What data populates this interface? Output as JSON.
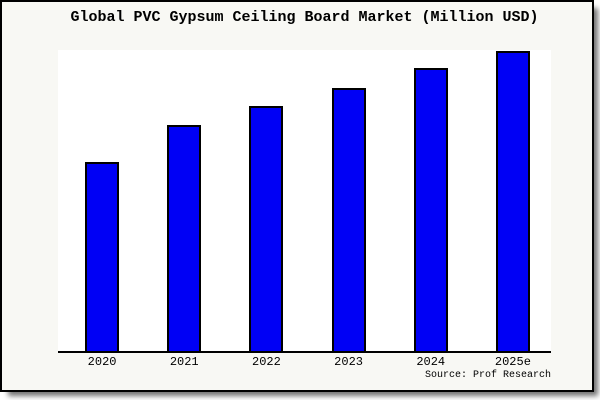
{
  "page": {
    "background": "#ffffff"
  },
  "figure": {
    "background": "#f8f8f4",
    "border_color": "#000000",
    "shadow_color": "#8c8c8c"
  },
  "chart_data": {
    "type": "bar",
    "title": "Global PVC Gypsum Ceiling Board Market (Million USD)",
    "categories": [
      "2020",
      "2021",
      "2022",
      "2023",
      "2024",
      "2025e"
    ],
    "values": [
      63,
      75.3,
      81.5,
      87.7,
      94.3,
      100
    ],
    "value_basis": "relative index estimated from bar heights (no y-axis labels shown); 2025e = 100",
    "xlabel": "",
    "ylabel": "",
    "ylim": [
      0,
      100.5
    ],
    "grid": false,
    "legend": false,
    "plot_background": "#ffffff",
    "bar_color": "#0000f5",
    "bar_edge_color": "#000000",
    "axis_line_color": "#000000"
  },
  "source": {
    "label": "Source: Prof Research"
  }
}
